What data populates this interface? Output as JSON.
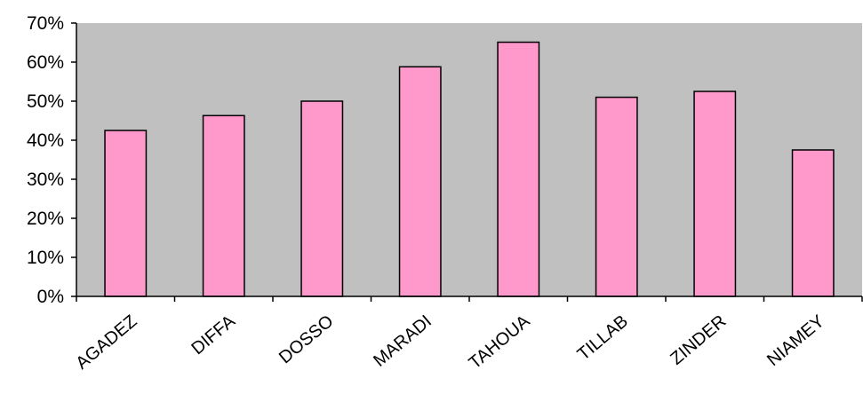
{
  "chart_data": {
    "type": "bar",
    "title": "",
    "xlabel": "",
    "ylabel": "",
    "categories": [
      "AGADEZ",
      "DIFFA",
      "DOSSO",
      "MARADI",
      "TAHOUA",
      "TILLAB",
      "ZINDER",
      "NIAMEY"
    ],
    "values": [
      42.5,
      46.3,
      50.0,
      58.8,
      65.1,
      51.0,
      52.5,
      37.5
    ],
    "y_ticks": [
      "0%",
      "10%",
      "20%",
      "30%",
      "40%",
      "50%",
      "60%",
      "70%"
    ],
    "ylim": [
      0,
      70
    ],
    "grid": false,
    "legend": "none",
    "colors": {
      "plot_area": "#c0c0c0",
      "bar_fill": "#ff99cc",
      "bar_stroke": "#000000",
      "axis": "#000000"
    }
  }
}
